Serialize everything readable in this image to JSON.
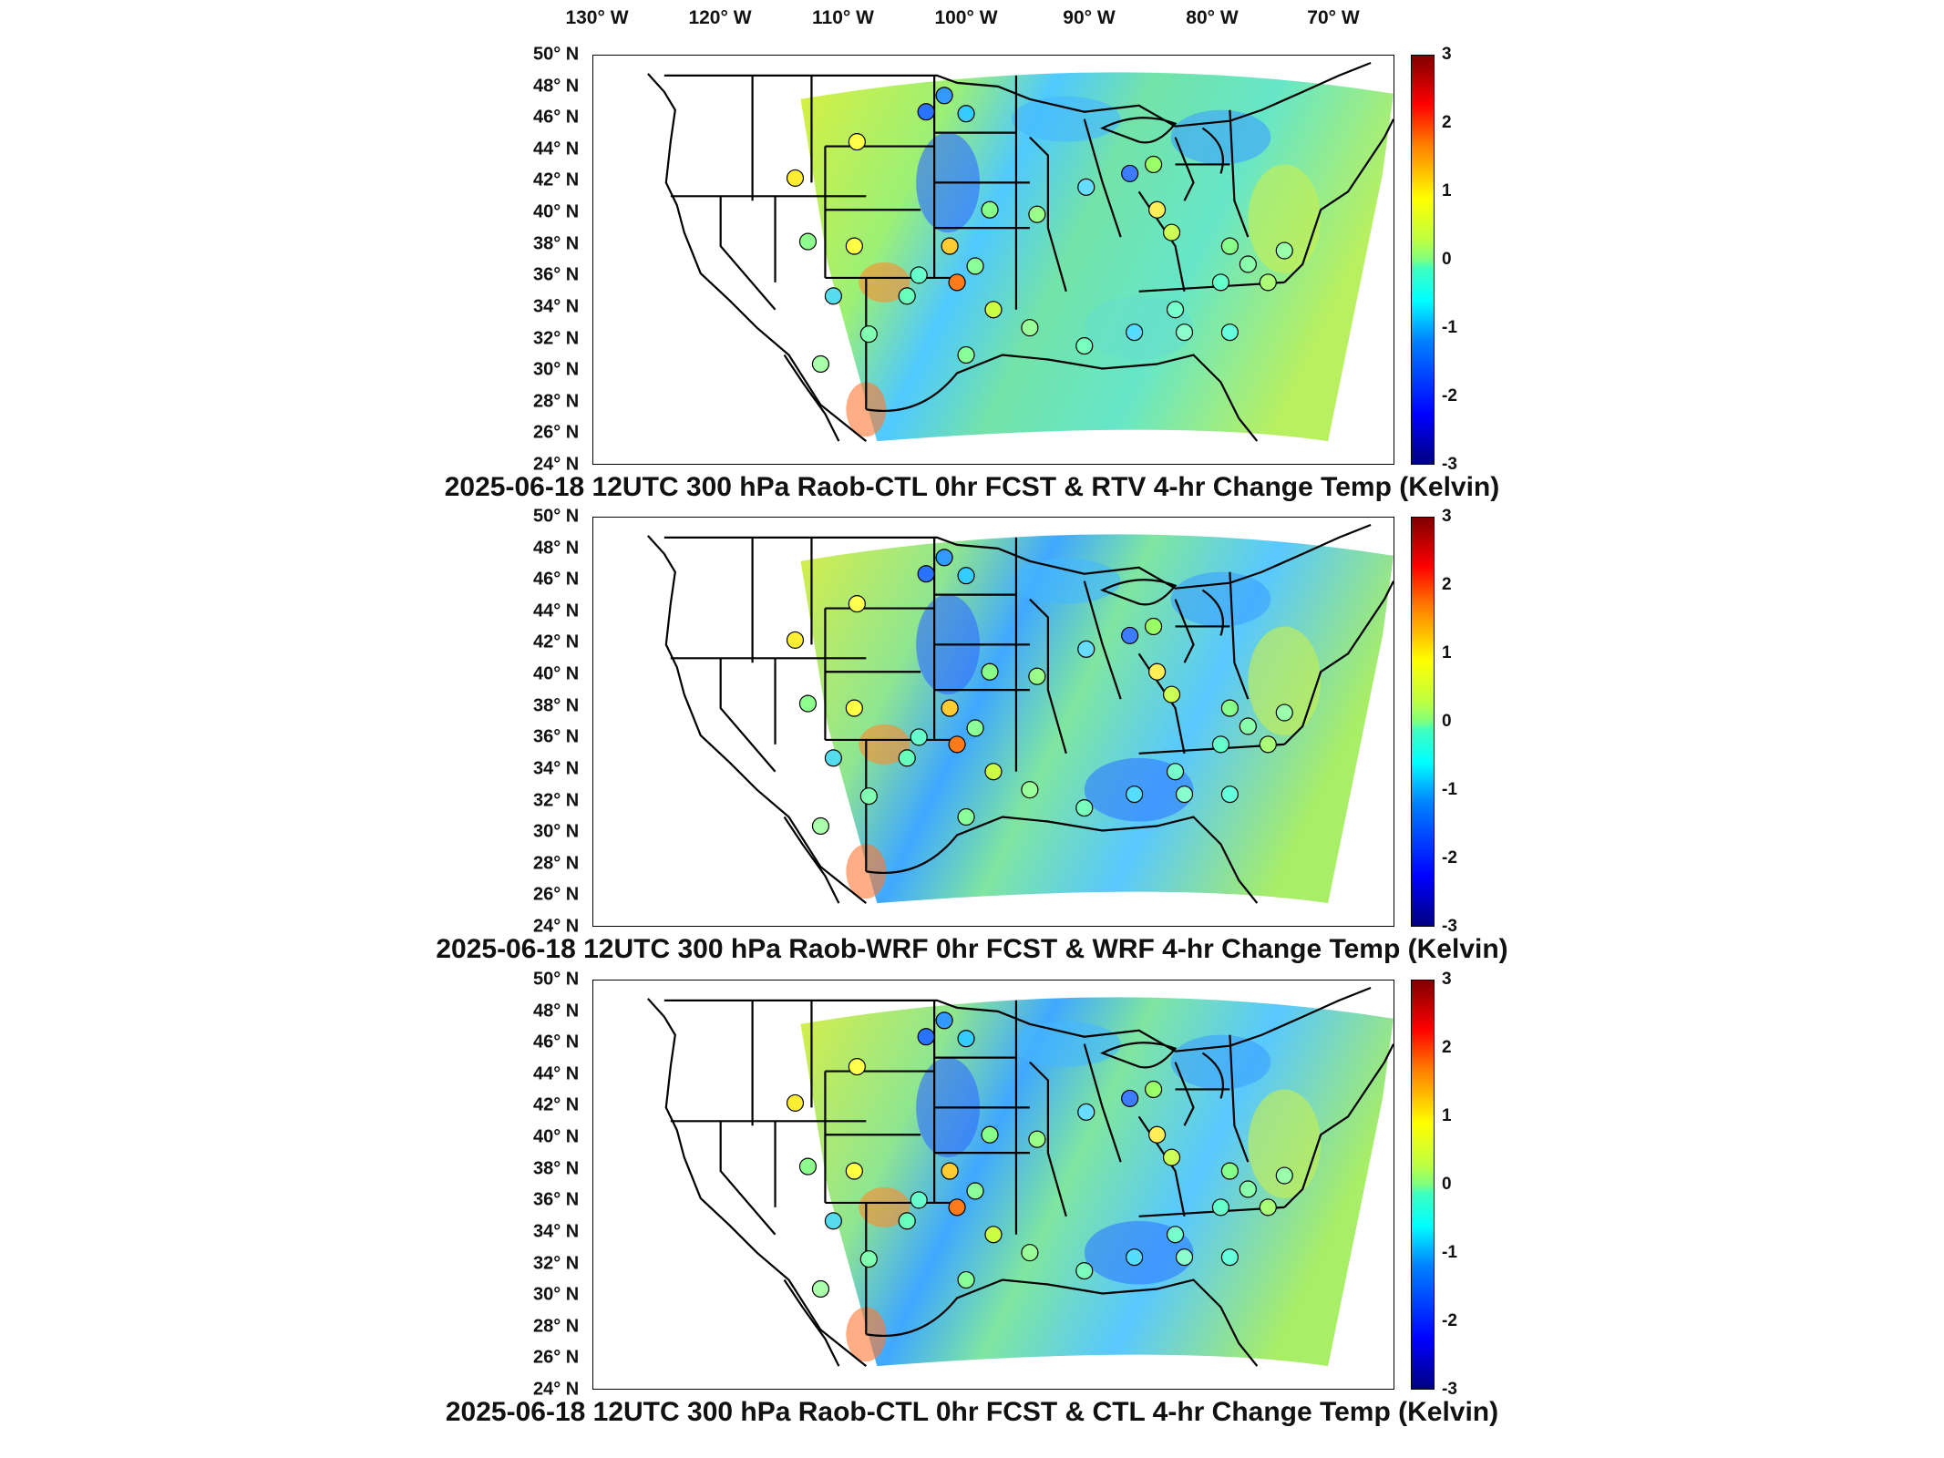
{
  "lon_labels": [
    "130° W",
    "120° W",
    "110° W",
    "100° W",
    "90° W",
    "80° W",
    "70° W"
  ],
  "lat_labels": [
    "50° N",
    "48° N",
    "46° N",
    "44° N",
    "42° N",
    "40° N",
    "38° N",
    "36° N",
    "34° N",
    "32° N",
    "30° N",
    "28° N",
    "26° N",
    "24° N"
  ],
  "colorbar": {
    "min": -3,
    "max": 3,
    "ticks": [
      "3",
      "2",
      "1",
      "0",
      "-1",
      "-2",
      "-3"
    ],
    "units": "Kelvin",
    "colormap": "jet"
  },
  "panels": [
    {
      "title": "2025-06-18 12UTC 300 hPa Raob-CTL 0hr FCST & RTV 4-hr Change Temp (Kelvin)"
    },
    {
      "title": "2025-06-18 12UTC 300 hPa Raob-WRF 0hr FCST & WRF 4-hr Change Temp (Kelvin)"
    },
    {
      "title": "2025-06-18 12UTC 300 hPa Raob-CTL 0hr FCST & CTL 4-hr Change Temp (Kelvin)"
    }
  ],
  "colors": {
    "domain_fill": "#6ee08a",
    "land_lines": "#000000"
  }
}
